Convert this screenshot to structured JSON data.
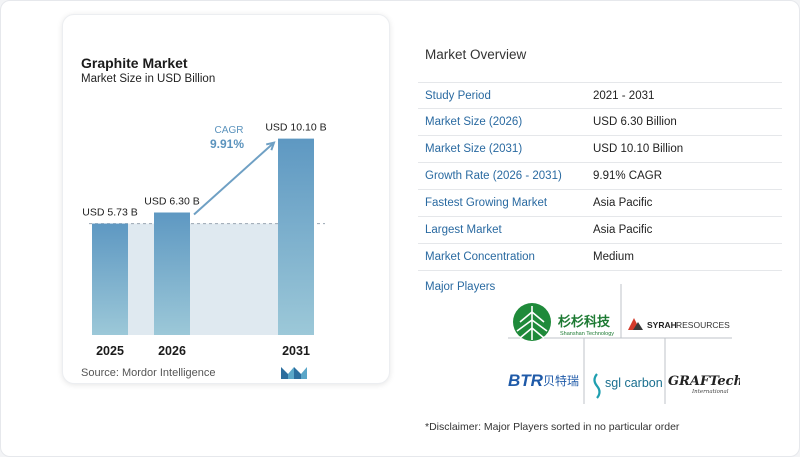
{
  "chart_data": {
    "type": "bar",
    "title": "Graphite Market",
    "subtitle": "Market Size in USD Billion",
    "categories": [
      "2025",
      "2026",
      "2031"
    ],
    "values": [
      5.73,
      6.3,
      10.1
    ],
    "data_labels": [
      "USD 5.73 B",
      "USD 6.30 B",
      "USD 10.10 B"
    ],
    "cagr_label": "CAGR",
    "cagr_value": "9.91%",
    "ylim": [
      0,
      10.8
    ],
    "colors": {
      "bar_top": "#5e98c2",
      "bar_bottom": "#9cc8d8",
      "band": "#dfe9f0",
      "arrow": "#6fa0c4",
      "cagr": "#5b93bd"
    }
  },
  "source": "Source:  Mordor Intelligence",
  "logo_icon": "mordor-intelligence-logo",
  "overview": {
    "title": "Market Overview",
    "rows": [
      {
        "label": "Study Period",
        "value": "2021 - 2031"
      },
      {
        "label": "Market Size (2026)",
        "value": "USD 6.30 Billion"
      },
      {
        "label": "Market Size (2031)",
        "value": "USD 10.10 Billion"
      },
      {
        "label": "Growth Rate (2026 - 2031)",
        "value": "9.91% CAGR"
      },
      {
        "label": "Fastest Growing Market",
        "value": "Asia Pacific"
      },
      {
        "label": "Largest Market",
        "value": "Asia Pacific"
      },
      {
        "label": "Market Concentration",
        "value": "Medium"
      }
    ],
    "players_title": "Major Players",
    "players": [
      {
        "name": "杉杉科技",
        "sub": "Shanshan Technology"
      },
      {
        "name": "SYRAH",
        "sub": "RESOURCES"
      },
      {
        "name": "BTR",
        "sub": "贝特瑞"
      },
      {
        "name": "sgl carbon",
        "sub": ""
      },
      {
        "name": "GRAFTech",
        "sub": "International"
      }
    ],
    "disclaimer": "*Disclaimer: Major Players sorted in no particular order"
  }
}
